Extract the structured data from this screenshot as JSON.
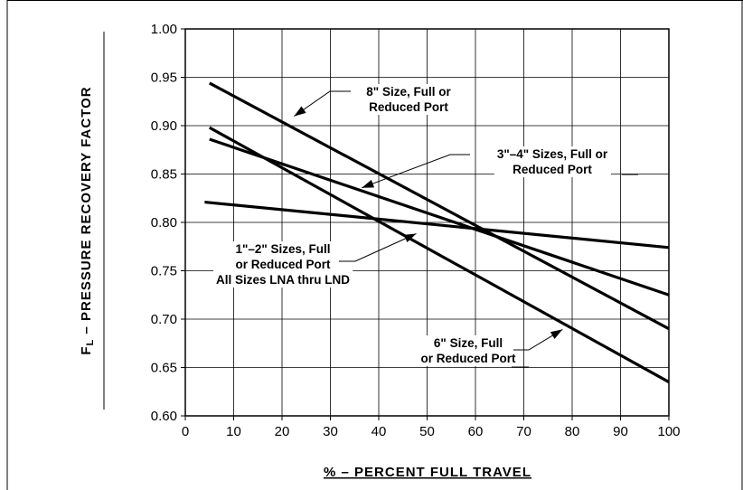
{
  "chart_data": {
    "type": "line",
    "ylabel_main": "F",
    "ylabel_sub": "L",
    "ylabel_rest": " – PRESSURE RECOVERY FACTOR",
    "xlabel": "% – PERCENT FULL TRAVEL",
    "xlim": [
      0,
      100
    ],
    "ylim": [
      0.6,
      1.0
    ],
    "x_ticks": [
      "0",
      "10",
      "20",
      "30",
      "40",
      "50",
      "60",
      "70",
      "80",
      "90",
      "100"
    ],
    "y_ticks": [
      "0.60",
      "0.65",
      "0.70",
      "0.75",
      "0.80",
      "0.85",
      "0.90",
      "0.95",
      "1.00"
    ],
    "grid": true,
    "series": [
      {
        "name": "8\" Size, Full or Reduced Port",
        "x": [
          5,
          100
        ],
        "y": [
          0.944,
          0.69
        ]
      },
      {
        "name": "3\"–4\" Sizes, Full or Reduced Port",
        "x": [
          5,
          100
        ],
        "y": [
          0.886,
          0.725
        ]
      },
      {
        "name": "1\"–2\" Sizes, Full or Reduced Port All Sizes LNA thru LND",
        "x": [
          4,
          100
        ],
        "y": [
          0.821,
          0.774
        ]
      },
      {
        "name": "6\" Size, Full or Reduced Port",
        "x": [
          5,
          100
        ],
        "y": [
          0.898,
          0.635
        ]
      }
    ],
    "annotations": [
      {
        "lines": [
          "8\" Size, Full or",
          "Reduced Port"
        ],
        "target": [
          21,
          0.906
        ]
      },
      {
        "lines": [
          "3\"–4\" Sizes, Full or",
          "Reduced Port"
        ],
        "target": [
          35,
          0.833
        ]
      },
      {
        "lines": [
          "1\"–2\" Sizes, Full",
          "or Reduced Port",
          "All Sizes LNA thru LND"
        ],
        "target": [
          48.5,
          0.793
        ]
      },
      {
        "lines": [
          "6\" Size, Full",
          "or Reduced Port"
        ],
        "target": [
          79.5,
          0.694
        ]
      }
    ]
  }
}
